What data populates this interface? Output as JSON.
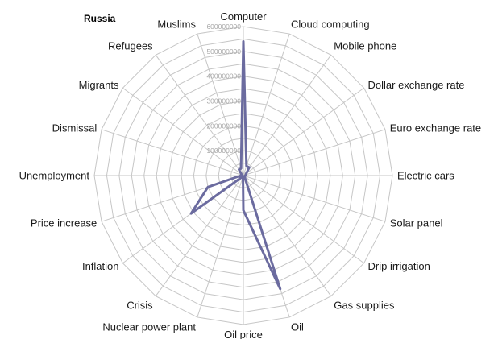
{
  "chart_data": {
    "type": "radar",
    "title": "Russia",
    "categories": [
      "Computer",
      "Cloud computing",
      "Mobile phone",
      "Dollar exchange rate",
      "Euro exchange rate",
      "Electric cars",
      "Solar panel",
      "Drip irrigation",
      "Gas supplies",
      "Oil",
      "Oil price",
      "Nuclear power plant",
      "Crisis",
      "Inflation",
      "Price increase",
      "Unemployment",
      "Dismissal",
      "Migrants",
      "Refugees",
      "Muslims"
    ],
    "series": [
      {
        "name": "",
        "color": "#6b6b9f",
        "values": [
          540000000,
          40000000,
          40000000,
          15000000,
          10000000,
          10000000,
          5000000,
          5000000,
          10000000,
          480000000,
          140000000,
          5000000,
          5000000,
          260000000,
          150000000,
          10000000,
          5000000,
          10000000,
          30000000,
          30000000
        ]
      }
    ],
    "ylim": [
      0,
      600000000
    ],
    "ticks": [
      0,
      100000000,
      200000000,
      300000000,
      400000000,
      500000000,
      600000000
    ],
    "tick_labels": [
      "0",
      "100000000",
      "200000000",
      "300000000",
      "400000000",
      "500000000",
      "600000000"
    ],
    "grid_rings": 12,
    "grid": true
  }
}
